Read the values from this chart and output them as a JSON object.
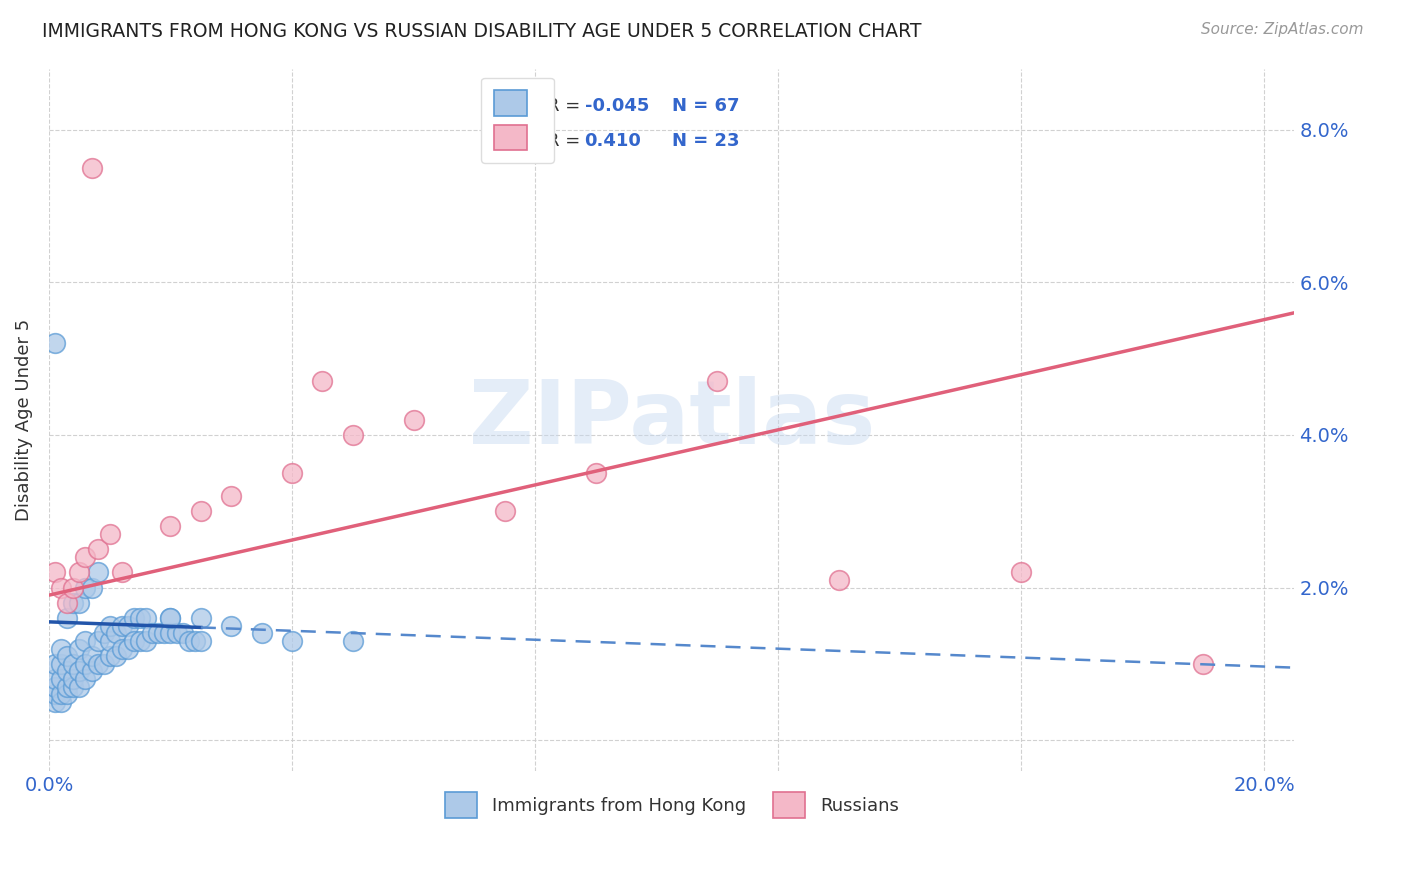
{
  "title": "IMMIGRANTS FROM HONG KONG VS RUSSIAN DISABILITY AGE UNDER 5 CORRELATION CHART",
  "source": "Source: ZipAtlas.com",
  "ylabel": "Disability Age Under 5",
  "xlim": [
    0.0,
    0.205
  ],
  "ylim": [
    -0.004,
    0.088
  ],
  "xticks": [
    0.0,
    0.04,
    0.08,
    0.12,
    0.16,
    0.2
  ],
  "yticks": [
    0.0,
    0.02,
    0.04,
    0.06,
    0.08
  ],
  "hk_color": "#adc9e8",
  "hk_edge_color": "#5b9bd5",
  "rus_color": "#f4b8c8",
  "rus_edge_color": "#e07090",
  "hk_R": -0.045,
  "hk_N": 67,
  "rus_R": 0.41,
  "rus_N": 23,
  "hk_line_start_x": 0.0,
  "hk_line_start_y": 0.0155,
  "hk_line_solid_end_x": 0.025,
  "hk_line_end_x": 0.205,
  "hk_line_end_y": 0.0095,
  "rus_line_start_x": 0.0,
  "rus_line_start_y": 0.019,
  "rus_line_end_x": 0.205,
  "rus_line_end_y": 0.056,
  "hk_x": [
    0.001,
    0.001,
    0.001,
    0.001,
    0.001,
    0.002,
    0.002,
    0.002,
    0.002,
    0.002,
    0.003,
    0.003,
    0.003,
    0.003,
    0.004,
    0.004,
    0.004,
    0.005,
    0.005,
    0.005,
    0.006,
    0.006,
    0.006,
    0.007,
    0.007,
    0.008,
    0.008,
    0.009,
    0.009,
    0.01,
    0.01,
    0.01,
    0.011,
    0.011,
    0.012,
    0.012,
    0.013,
    0.013,
    0.014,
    0.014,
    0.015,
    0.015,
    0.016,
    0.016,
    0.017,
    0.018,
    0.019,
    0.02,
    0.02,
    0.021,
    0.022,
    0.023,
    0.024,
    0.025,
    0.003,
    0.004,
    0.005,
    0.006,
    0.007,
    0.008,
    0.02,
    0.025,
    0.03,
    0.035,
    0.04,
    0.05,
    0.001
  ],
  "hk_y": [
    0.005,
    0.006,
    0.007,
    0.008,
    0.01,
    0.005,
    0.006,
    0.008,
    0.01,
    0.012,
    0.006,
    0.007,
    0.009,
    0.011,
    0.007,
    0.008,
    0.01,
    0.007,
    0.009,
    0.012,
    0.008,
    0.01,
    0.013,
    0.009,
    0.011,
    0.01,
    0.013,
    0.01,
    0.014,
    0.011,
    0.013,
    0.015,
    0.011,
    0.014,
    0.012,
    0.015,
    0.012,
    0.015,
    0.013,
    0.016,
    0.013,
    0.016,
    0.013,
    0.016,
    0.014,
    0.014,
    0.014,
    0.014,
    0.016,
    0.014,
    0.014,
    0.013,
    0.013,
    0.013,
    0.016,
    0.018,
    0.018,
    0.02,
    0.02,
    0.022,
    0.016,
    0.016,
    0.015,
    0.014,
    0.013,
    0.013,
    0.052
  ],
  "rus_x": [
    0.001,
    0.002,
    0.003,
    0.004,
    0.005,
    0.006,
    0.008,
    0.01,
    0.012,
    0.02,
    0.025,
    0.03,
    0.04,
    0.045,
    0.05,
    0.06,
    0.075,
    0.09,
    0.11,
    0.13,
    0.16,
    0.19,
    0.007
  ],
  "rus_y": [
    0.022,
    0.02,
    0.018,
    0.02,
    0.022,
    0.024,
    0.025,
    0.027,
    0.022,
    0.028,
    0.03,
    0.032,
    0.035,
    0.047,
    0.04,
    0.042,
    0.03,
    0.035,
    0.047,
    0.021,
    0.022,
    0.01,
    0.075
  ],
  "legend_color": "#3366cc",
  "background_color": "#ffffff",
  "grid_color": "#cccccc",
  "watermark_text": "ZIPatlas"
}
